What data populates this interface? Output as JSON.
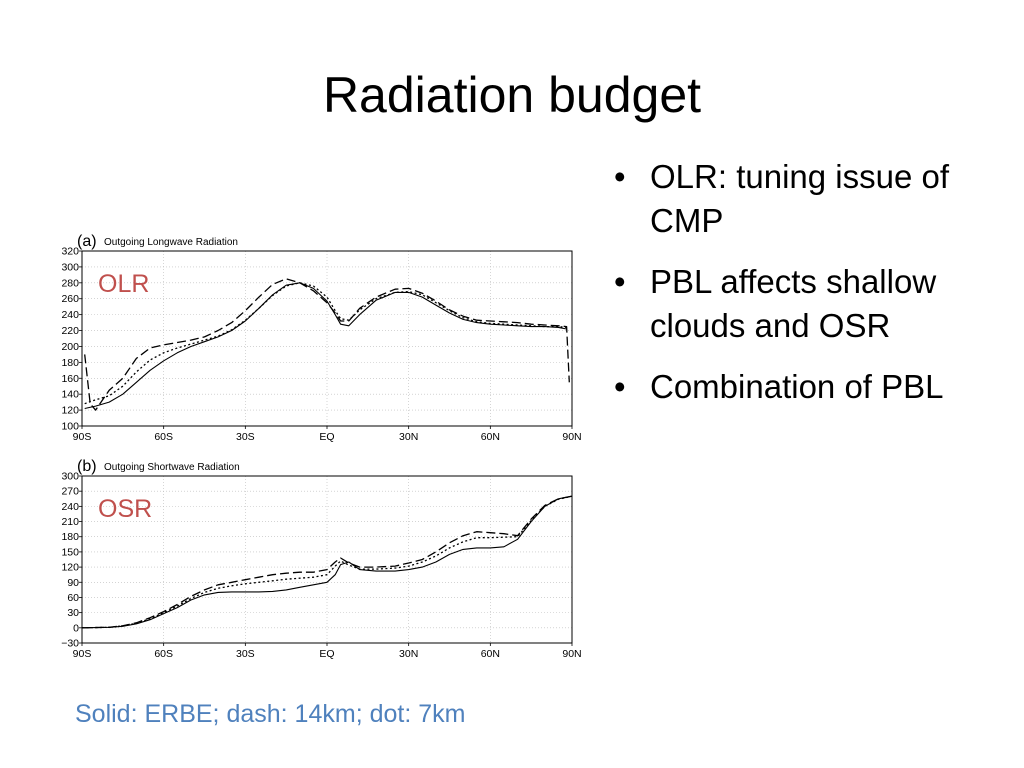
{
  "slide": {
    "title": "Radiation budget",
    "bullets": [
      {
        "text": "OLR: tuning issue of CMP"
      },
      {
        "text": "PBL affects shallow clouds and OSR"
      },
      {
        "text": "Combination of PBL"
      }
    ],
    "bullet_symbol": "•",
    "caption": "Solid: ERBE; dash: 14km; dot: 7km",
    "caption_color": "#4f81bd"
  },
  "chart_data": [
    {
      "type": "line",
      "panel_label": "(a)",
      "title": "Outgoing Longwave Radiation",
      "tag": "OLR",
      "tag_color": "#c0504d",
      "x_ticks": [
        -90,
        -60,
        -30,
        0,
        30,
        60,
        90
      ],
      "x_tick_labels": [
        "90S",
        "60S",
        "30S",
        "EQ",
        "30N",
        "60N",
        "90N"
      ],
      "xlim": [
        -90,
        90
      ],
      "ylim": [
        100,
        320
      ],
      "y_ticks": [
        100,
        120,
        140,
        160,
        180,
        200,
        220,
        240,
        260,
        280,
        300,
        320
      ],
      "y_tick_labels": [
        "100",
        "120",
        "140",
        "160",
        "180",
        "200",
        "220",
        "240",
        "260",
        "280",
        "300",
        "320"
      ],
      "grid": true,
      "series": [
        {
          "style": "solid",
          "x": [
            -89,
            -85,
            -80,
            -75,
            -70,
            -65,
            -60,
            -55,
            -50,
            -45,
            -40,
            -35,
            -30,
            -25,
            -20,
            -15,
            -10,
            -5,
            0,
            3,
            5,
            8,
            12,
            18,
            25,
            30,
            35,
            40,
            45,
            50,
            55,
            60,
            65,
            70,
            75,
            80,
            85,
            88
          ],
          "y": [
            122,
            125,
            130,
            140,
            155,
            170,
            182,
            192,
            200,
            206,
            212,
            220,
            232,
            248,
            265,
            277,
            280,
            273,
            257,
            240,
            228,
            226,
            240,
            258,
            268,
            268,
            262,
            252,
            242,
            234,
            230,
            228,
            227,
            226,
            225,
            225,
            224,
            222
          ]
        },
        {
          "style": "dash",
          "x": [
            -89,
            -87,
            -85,
            -80,
            -75,
            -70,
            -65,
            -60,
            -55,
            -50,
            -45,
            -40,
            -35,
            -30,
            -25,
            -20,
            -15,
            -10,
            -5,
            0,
            3,
            5,
            8,
            12,
            18,
            25,
            30,
            35,
            40,
            45,
            50,
            55,
            60,
            65,
            70,
            75,
            80,
            85,
            88,
            89
          ],
          "y": [
            190,
            128,
            120,
            145,
            160,
            185,
            198,
            202,
            205,
            208,
            212,
            220,
            230,
            245,
            262,
            278,
            285,
            280,
            270,
            255,
            242,
            232,
            232,
            248,
            262,
            272,
            273,
            267,
            257,
            246,
            238,
            233,
            232,
            231,
            230,
            228,
            227,
            226,
            225,
            155
          ]
        },
        {
          "style": "dot",
          "x": [
            -89,
            -85,
            -80,
            -75,
            -70,
            -65,
            -60,
            -55,
            -50,
            -45,
            -40,
            -35,
            -30,
            -25,
            -20,
            -15,
            -10,
            -5,
            0,
            3,
            5,
            8,
            12,
            18,
            25,
            30,
            35,
            40,
            45,
            50,
            55,
            60,
            65,
            70,
            75,
            80,
            85,
            88
          ],
          "y": [
            128,
            133,
            138,
            150,
            168,
            183,
            192,
            198,
            203,
            208,
            213,
            221,
            233,
            248,
            264,
            276,
            280,
            276,
            262,
            245,
            235,
            233,
            246,
            260,
            268,
            269,
            265,
            255,
            245,
            236,
            231,
            229,
            228,
            227,
            226,
            225,
            225,
            224
          ]
        }
      ]
    },
    {
      "type": "line",
      "panel_label": "(b)",
      "title": "Outgoing Shortwave Radiation",
      "tag": "OSR",
      "tag_color": "#c0504d",
      "x_ticks": [
        -90,
        -60,
        -30,
        0,
        30,
        60,
        90
      ],
      "x_tick_labels": [
        "90S",
        "60S",
        "30S",
        "EQ",
        "30N",
        "60N",
        "90N"
      ],
      "xlim": [
        -90,
        90
      ],
      "ylim": [
        -30,
        300
      ],
      "y_ticks": [
        -30,
        0,
        30,
        60,
        90,
        120,
        150,
        180,
        210,
        240,
        270,
        300
      ],
      "y_tick_labels": [
        "−30",
        "0",
        "30",
        "60",
        "90",
        "120",
        "150",
        "180",
        "210",
        "240",
        "270",
        "300"
      ],
      "grid": true,
      "series": [
        {
          "style": "solid",
          "x": [
            -90,
            -80,
            -75,
            -70,
            -65,
            -60,
            -55,
            -50,
            -45,
            -40,
            -35,
            -30,
            -25,
            -20,
            -15,
            -10,
            -5,
            0,
            3,
            5,
            8,
            12,
            18,
            25,
            30,
            35,
            40,
            45,
            50,
            55,
            60,
            65,
            70,
            75,
            80,
            85,
            90
          ],
          "y": [
            0,
            1,
            3,
            8,
            16,
            28,
            40,
            55,
            65,
            70,
            71,
            71,
            71,
            72,
            75,
            80,
            85,
            90,
            105,
            125,
            130,
            115,
            112,
            112,
            115,
            120,
            130,
            145,
            155,
            158,
            158,
            160,
            175,
            210,
            240,
            255,
            260
          ]
        },
        {
          "style": "dash",
          "x": [
            -90,
            -80,
            -75,
            -70,
            -65,
            -60,
            -55,
            -50,
            -45,
            -40,
            -35,
            -30,
            -25,
            -20,
            -15,
            -10,
            -5,
            0,
            3,
            5,
            8,
            12,
            18,
            25,
            30,
            35,
            40,
            45,
            50,
            55,
            60,
            65,
            70,
            75,
            80,
            85,
            90
          ],
          "y": [
            0,
            1,
            4,
            10,
            20,
            32,
            46,
            62,
            75,
            85,
            90,
            95,
            100,
            105,
            108,
            110,
            110,
            115,
            130,
            138,
            128,
            120,
            120,
            122,
            128,
            135,
            150,
            168,
            182,
            190,
            188,
            186,
            182,
            215,
            242,
            255,
            260
          ]
        },
        {
          "style": "dot",
          "x": [
            -90,
            -80,
            -75,
            -70,
            -65,
            -60,
            -55,
            -50,
            -45,
            -40,
            -35,
            -30,
            -25,
            -20,
            -15,
            -10,
            -5,
            0,
            3,
            5,
            8,
            12,
            18,
            25,
            30,
            35,
            40,
            45,
            50,
            55,
            60,
            65,
            70,
            75,
            80,
            85,
            90
          ],
          "y": [
            0,
            1,
            4,
            9,
            18,
            30,
            43,
            58,
            70,
            78,
            83,
            87,
            90,
            93,
            96,
            98,
            100,
            105,
            122,
            132,
            124,
            116,
            116,
            118,
            122,
            130,
            142,
            158,
            170,
            178,
            178,
            179,
            180,
            212,
            240,
            254,
            260
          ]
        }
      ]
    }
  ]
}
